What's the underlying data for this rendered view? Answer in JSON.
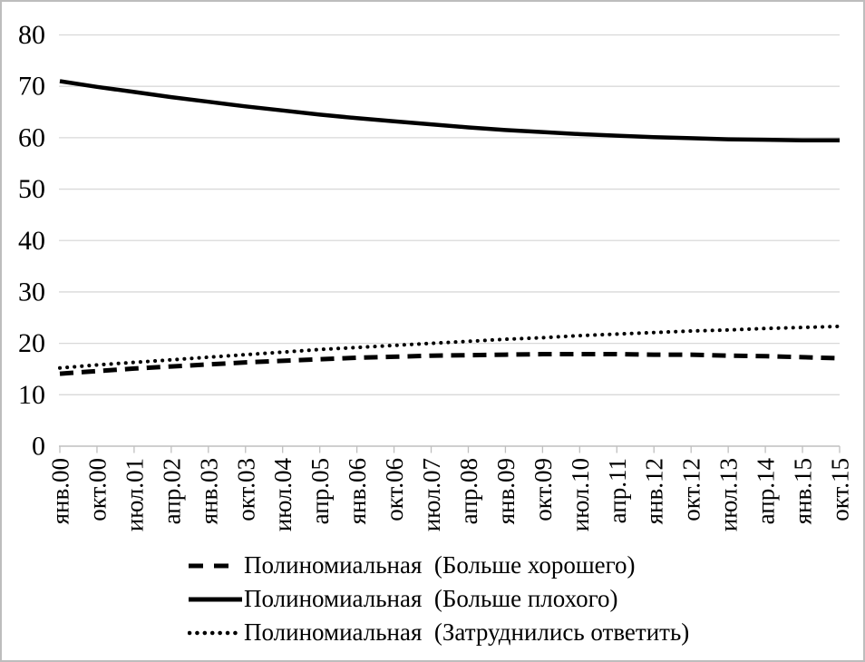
{
  "figure": {
    "background": "#ffffff",
    "border_color": "#bdbdbd",
    "text_color": "#000000",
    "grid_color": "#d9d9d9",
    "axis_color": "#bfbfbf",
    "series_color": "#000000"
  },
  "chart_data": {
    "type": "line",
    "title": "",
    "xlabel": "",
    "ylabel": "",
    "ylim": [
      0,
      80
    ],
    "yticks": [
      0,
      10,
      20,
      30,
      40,
      50,
      60,
      70,
      80
    ],
    "grid": true,
    "legend_position": "bottom",
    "categories": [
      "янв.00",
      "окт.00",
      "июл.01",
      "апр.02",
      "янв.03",
      "окт.03",
      "июл.04",
      "апр.05",
      "янв.06",
      "окт.06",
      "июл.07",
      "апр.08",
      "янв.09",
      "окт.09",
      "июл.10",
      "апр.11",
      "янв.12",
      "окт.12",
      "июл.13",
      "апр.14",
      "янв.15",
      "окт.15"
    ],
    "series": [
      {
        "name": "Полиномиальная  (Больше хорошего)",
        "line_style": "dashed",
        "values": [
          14.1,
          14.6,
          15.1,
          15.5,
          15.9,
          16.3,
          16.6,
          16.9,
          17.2,
          17.4,
          17.6,
          17.7,
          17.8,
          17.9,
          17.9,
          17.9,
          17.8,
          17.8,
          17.6,
          17.5,
          17.3,
          17.1
        ]
      },
      {
        "name": "Полиномиальная  (Больше плохого)",
        "line_style": "solid",
        "values": [
          71.0,
          69.9,
          68.9,
          67.9,
          67.0,
          66.1,
          65.3,
          64.5,
          63.8,
          63.2,
          62.6,
          62.0,
          61.5,
          61.1,
          60.7,
          60.4,
          60.1,
          59.9,
          59.7,
          59.6,
          59.5,
          59.5
        ]
      },
      {
        "name": "Полиномиальная  (Затруднились ответить)",
        "line_style": "dotted",
        "values": [
          15.2,
          15.8,
          16.3,
          16.8,
          17.3,
          17.8,
          18.3,
          18.8,
          19.2,
          19.6,
          20.0,
          20.4,
          20.8,
          21.1,
          21.5,
          21.8,
          22.1,
          22.4,
          22.6,
          22.9,
          23.1,
          23.3
        ]
      }
    ]
  }
}
